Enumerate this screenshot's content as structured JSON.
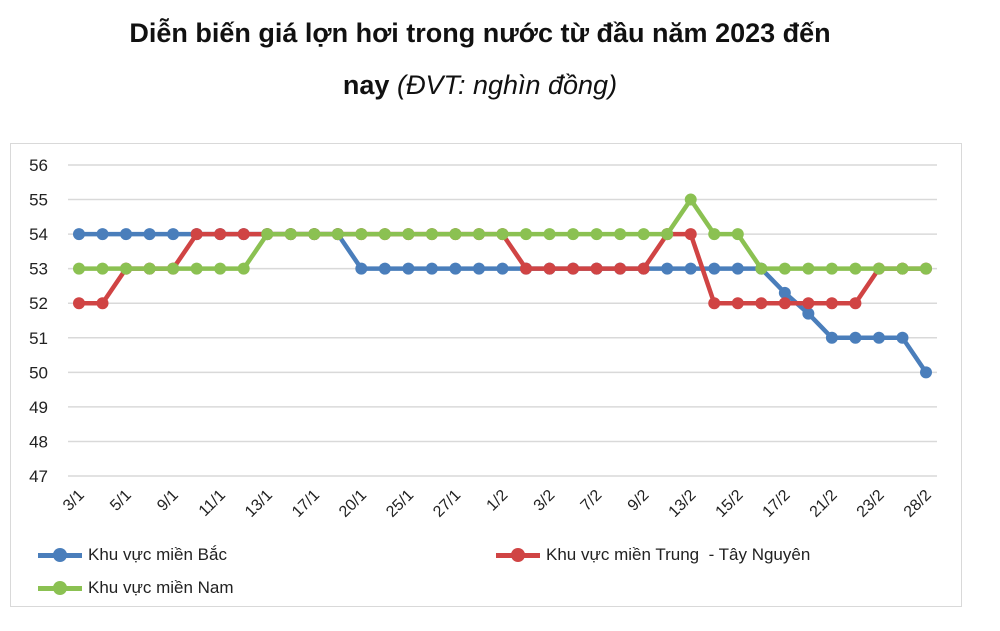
{
  "chart_data": {
    "type": "line",
    "title_main": "Diễn biến giá lợn hơi trong nước từ đầu năm 2023 đến",
    "title_line2": "nay",
    "title_unit": "(ĐVT: nghìn đồng)",
    "x_tick_labels": [
      "3/1",
      "5/1",
      "9/1",
      "11/1",
      "13/1",
      "17/1",
      "20/1",
      "25/1",
      "27/1",
      "1/2",
      "3/2",
      "7/2",
      "9/2",
      "13/2",
      "15/2",
      "17/2",
      "21/2",
      "23/2",
      "28/2"
    ],
    "ylim": [
      47,
      56
    ],
    "y_ticks": [
      47,
      48,
      49,
      50,
      51,
      52,
      53,
      54,
      55,
      56
    ],
    "grid": true,
    "legend_placement": "bottom",
    "series": [
      {
        "name": "Khu vực miền Bắc",
        "color": "#4a7ebb",
        "values": [
          54,
          54,
          54,
          54,
          54,
          54,
          54,
          54,
          54,
          54,
          54,
          54,
          53,
          53,
          53,
          53,
          53,
          53,
          53,
          53,
          53,
          53,
          53,
          53,
          53,
          53,
          53,
          53,
          53,
          53,
          52.3,
          51.7,
          51,
          51,
          51,
          51,
          50
        ]
      },
      {
        "name": "Khu vực miền Trung  - Tây Nguyên",
        "color": "#d04444",
        "values": [
          52,
          52,
          53,
          53,
          53,
          54,
          54,
          54,
          54,
          54,
          54,
          54,
          54,
          54,
          54,
          54,
          54,
          54,
          54,
          53,
          53,
          53,
          53,
          53,
          53,
          54,
          54,
          52,
          52,
          52,
          52,
          52,
          52,
          52,
          53,
          53,
          53
        ]
      },
      {
        "name": "Khu vực miền Nam",
        "color": "#8bc152",
        "values": [
          53,
          53,
          53,
          53,
          53,
          53,
          53,
          53,
          54,
          54,
          54,
          54,
          54,
          54,
          54,
          54,
          54,
          54,
          54,
          54,
          54,
          54,
          54,
          54,
          54,
          54,
          55,
          54,
          54,
          53,
          53,
          53,
          53,
          53,
          53,
          53,
          53
        ]
      }
    ]
  }
}
